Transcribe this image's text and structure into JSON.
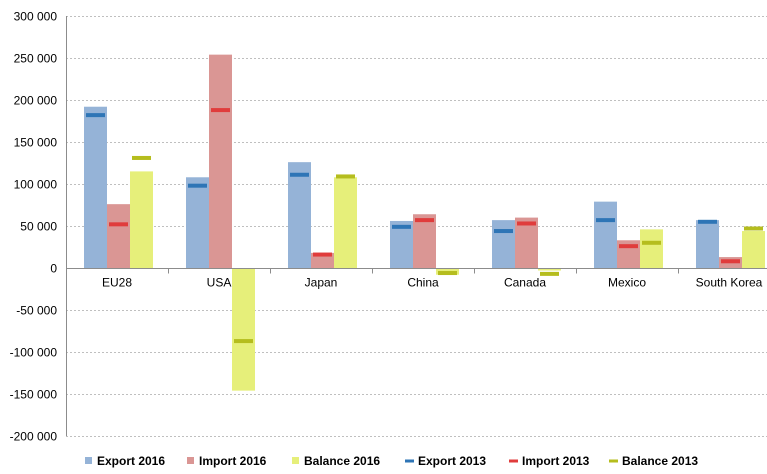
{
  "chart_data": {
    "type": "bar",
    "categories": [
      "EU28",
      "USA",
      "Japan",
      "China",
      "Canada",
      "Mexico",
      "South Korea"
    ],
    "series": [
      {
        "name": "Export 2016",
        "kind": "bar",
        "color": "#95b3d7",
        "values": [
          192000,
          108000,
          126000,
          56000,
          57000,
          79000,
          57000
        ]
      },
      {
        "name": "Import 2016",
        "kind": "bar",
        "color": "#da9694",
        "values": [
          76000,
          254000,
          18000,
          64000,
          60000,
          33000,
          13000
        ]
      },
      {
        "name": "Balance 2016",
        "kind": "bar",
        "color": "#e6ef7a",
        "values": [
          115000,
          -146000,
          108000,
          -8000,
          -3000,
          46000,
          44000
        ]
      },
      {
        "name": "Export 2013",
        "kind": "marker",
        "color": "#2e75b6",
        "values": [
          182000,
          98000,
          111000,
          49000,
          44000,
          57000,
          55000
        ]
      },
      {
        "name": "Import 2013",
        "kind": "marker",
        "color": "#e03c3c",
        "values": [
          52000,
          188000,
          16000,
          57000,
          53000,
          26000,
          8000
        ]
      },
      {
        "name": "Balance 2013",
        "kind": "marker",
        "color": "#b5bd1e",
        "values": [
          131000,
          -87000,
          109000,
          -6000,
          -7000,
          30000,
          47000
        ]
      }
    ],
    "ylim": [
      -200000,
      300000
    ],
    "yticks": [
      300000,
      250000,
      200000,
      150000,
      100000,
      50000,
      0,
      -50000,
      -100000,
      -150000,
      -200000
    ],
    "ytick_labels": [
      "300 000",
      "250 000",
      "200 000",
      "150 000",
      "100 000",
      "50 000",
      "0",
      "-50 000",
      "-100 000",
      "-150 000",
      "-200 000"
    ],
    "grid": true,
    "legend_position": "bottom",
    "title": "",
    "xlabel": "",
    "ylabel": ""
  }
}
